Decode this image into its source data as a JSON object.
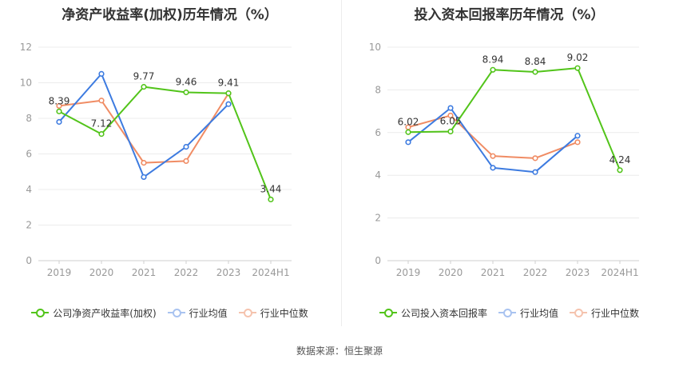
{
  "source_label": "数据来源：恒生聚源",
  "chart_data": [
    {
      "type": "line",
      "title": "净资产收益率(加权)历年情况（%）",
      "categories": [
        "2019",
        "2020",
        "2021",
        "2022",
        "2023",
        "2024H1"
      ],
      "ylim": [
        0,
        12
      ],
      "yticks": [
        0,
        2,
        4,
        6,
        8,
        10,
        12
      ],
      "grid": true,
      "legend_position": "bottom",
      "series": [
        {
          "name": "公司净资产收益率(加权)",
          "color": "#52c41a",
          "values": [
            8.39,
            7.12,
            9.77,
            9.46,
            9.41,
            3.44
          ],
          "labels": [
            "8.39",
            "7.12",
            "9.77",
            "9.46",
            "9.41",
            "3.44"
          ]
        },
        {
          "name": "行业均值",
          "color": "#3d7be0",
          "values": [
            7.8,
            10.5,
            4.7,
            6.4,
            8.8,
            null
          ]
        },
        {
          "name": "行业中位数",
          "color": "#f08c64",
          "values": [
            8.7,
            9.0,
            5.5,
            5.6,
            9.4,
            null
          ]
        }
      ]
    },
    {
      "type": "line",
      "title": "投入资本回报率历年情况（%）",
      "categories": [
        "2019",
        "2020",
        "2021",
        "2022",
        "2023",
        "2024H1"
      ],
      "ylim": [
        0,
        10
      ],
      "yticks": [
        0,
        2,
        4,
        6,
        8,
        10
      ],
      "grid": true,
      "legend_position": "bottom",
      "series": [
        {
          "name": "公司投入资本回报率",
          "color": "#52c41a",
          "values": [
            6.02,
            6.05,
            8.94,
            8.84,
            9.02,
            4.24
          ],
          "labels": [
            "6.02",
            "6.05",
            "8.94",
            "8.84",
            "9.02",
            "4.24"
          ]
        },
        {
          "name": "行业均值",
          "color": "#3d7be0",
          "values": [
            5.55,
            7.15,
            4.35,
            4.15,
            5.85,
            null
          ]
        },
        {
          "name": "行业中位数",
          "color": "#f08c64",
          "values": [
            6.25,
            6.8,
            4.9,
            4.8,
            5.55,
            null
          ]
        }
      ]
    }
  ]
}
